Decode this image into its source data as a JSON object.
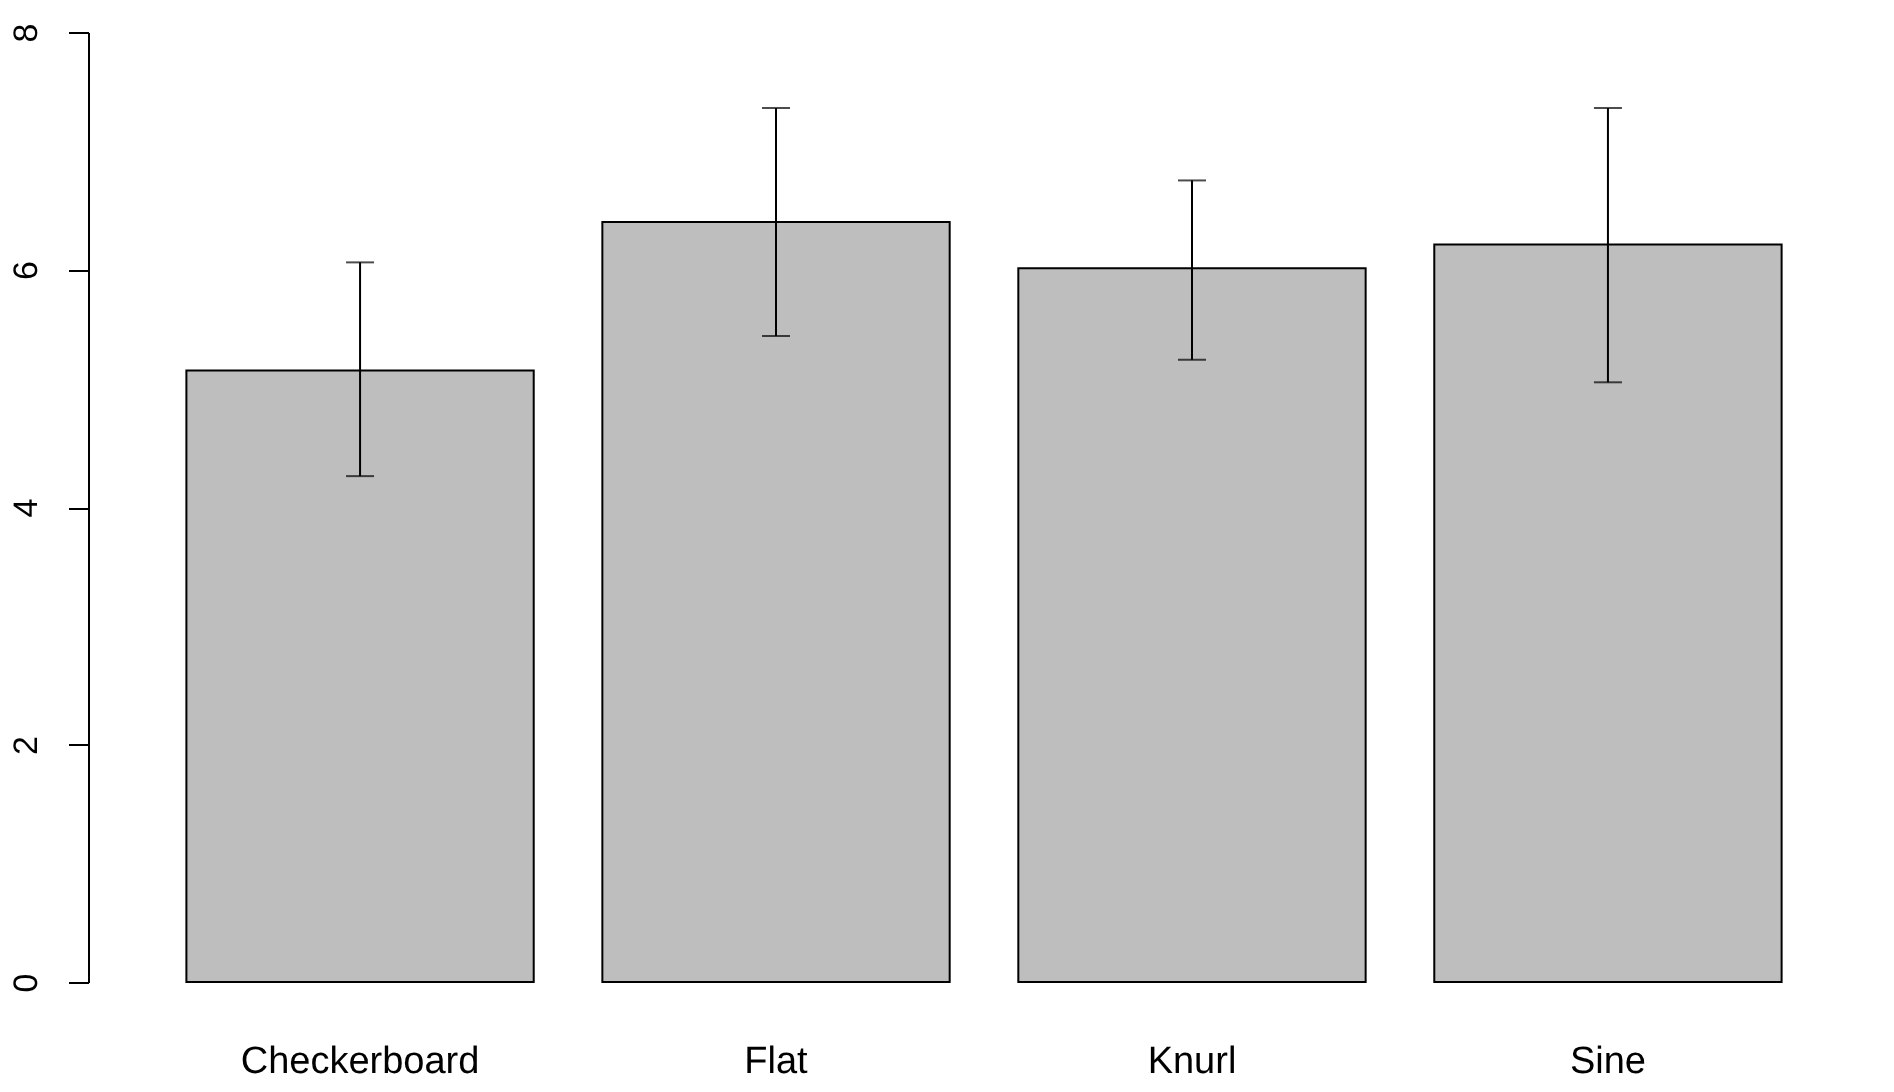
{
  "chart_data": {
    "type": "bar",
    "categories": [
      "Checkerboard",
      "Flat",
      "Knurl",
      "Sine"
    ],
    "values": [
      5.15,
      6.4,
      6.01,
      6.21
    ],
    "color": "#bebebe",
    "errors": [
      [
        4.26,
        6.06
      ],
      [
        5.44,
        7.36
      ],
      [
        5.24,
        6.75
      ],
      [
        5.05,
        7.36
      ]
    ],
    "ylim": [
      0,
      8
    ],
    "yticks": [
      0,
      2,
      4,
      6,
      8
    ],
    "grid": false
  }
}
